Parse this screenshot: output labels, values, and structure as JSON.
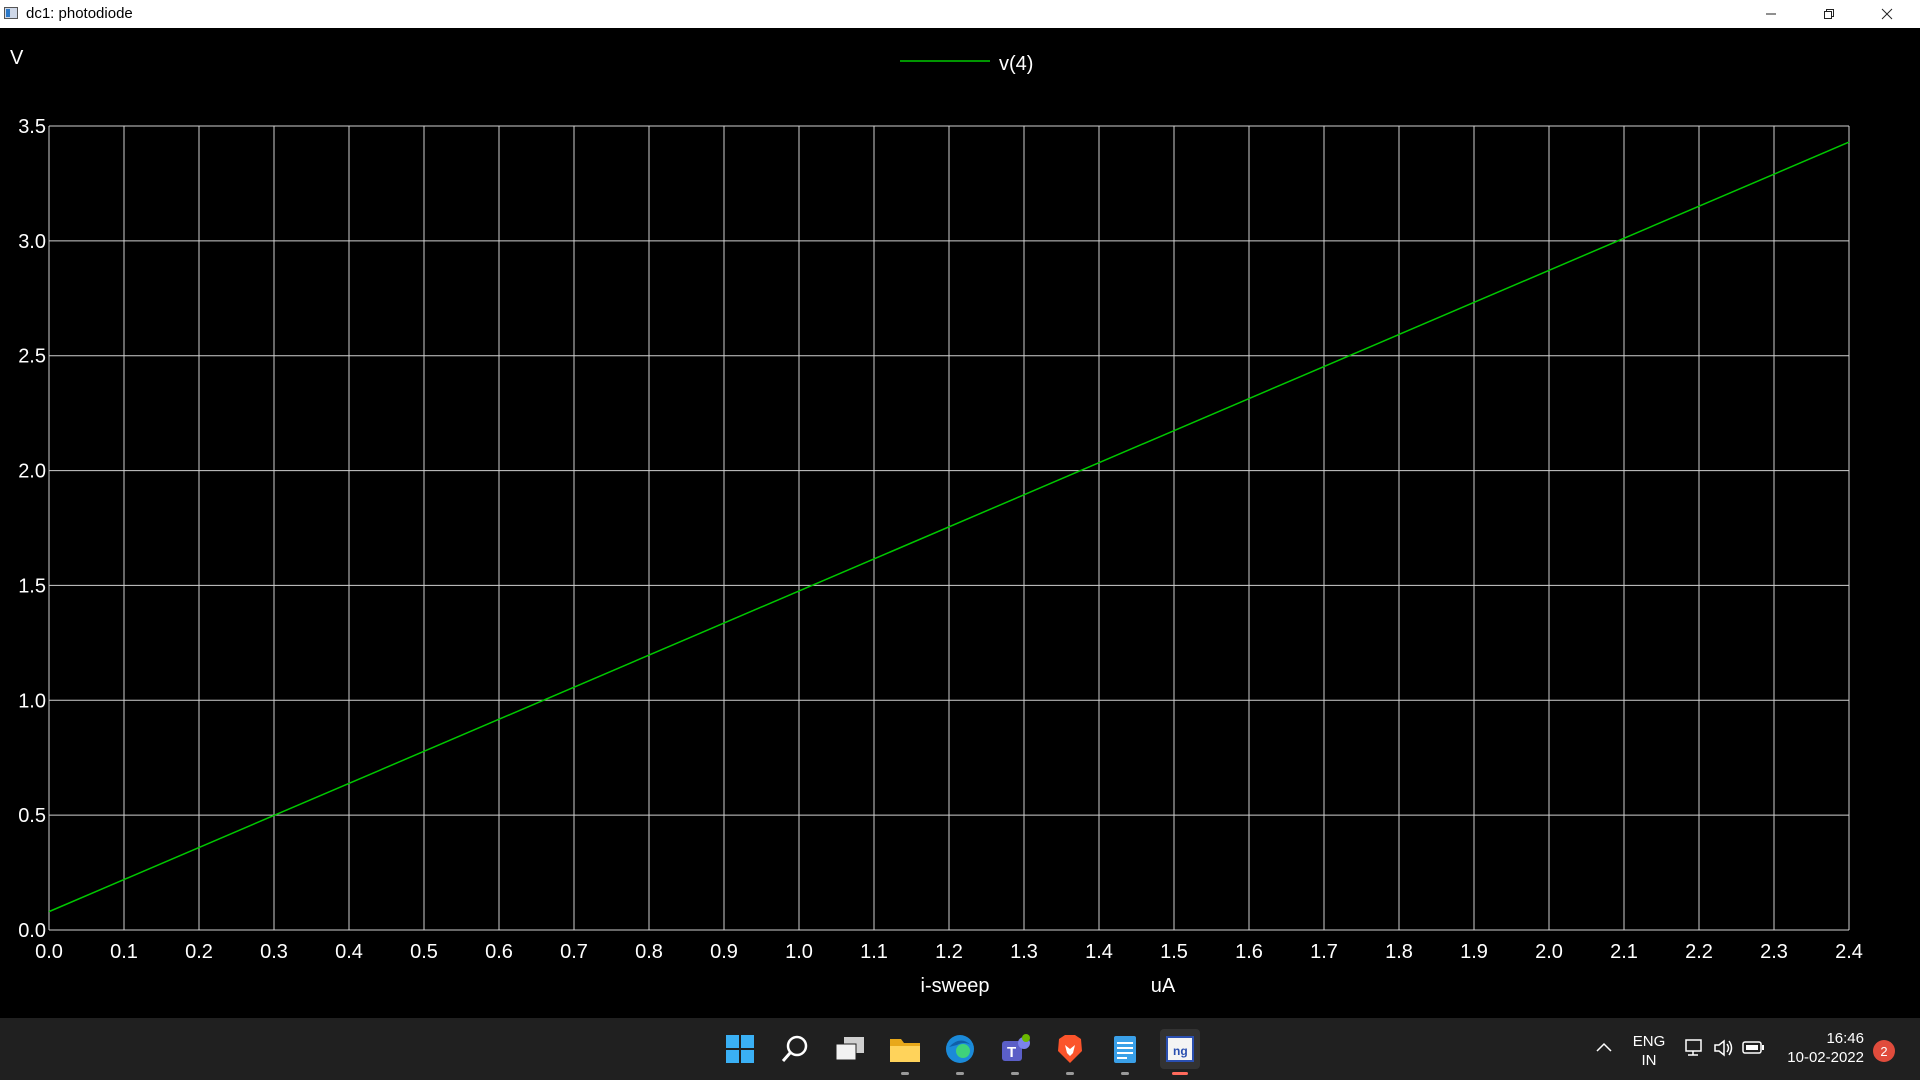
{
  "window": {
    "title": "dc1: photodiode",
    "buttons": [
      "minimize",
      "restore",
      "close"
    ]
  },
  "chart_data": {
    "type": "line",
    "title": "",
    "ylabel": "V",
    "xlabel": "i-sweep",
    "xunit": "uA",
    "xlim": [
      0.0,
      2.4
    ],
    "ylim": [
      0.0,
      3.5
    ],
    "grid": true,
    "legend_placement": "top-center",
    "x_ticks": [
      "0.0",
      "0.1",
      "0.2",
      "0.3",
      "0.4",
      "0.5",
      "0.6",
      "0.7",
      "0.8",
      "0.9",
      "1.0",
      "1.1",
      "1.2",
      "1.3",
      "1.4",
      "1.5",
      "1.6",
      "1.7",
      "1.8",
      "1.9",
      "2.0",
      "2.1",
      "2.2",
      "2.3",
      "2.4"
    ],
    "y_ticks": [
      "0.0",
      "0.5",
      "1.0",
      "1.5",
      "2.0",
      "2.5",
      "3.0",
      "3.5"
    ],
    "series": [
      {
        "name": "v(4)",
        "color": "#00c800",
        "x": [
          0.0,
          2.4
        ],
        "y": [
          0.08,
          3.43
        ]
      }
    ],
    "colors": {
      "background": "#000000",
      "grid": "#d0d0d0",
      "text": "#ffffff"
    }
  },
  "taskbar": {
    "apps": [
      "windows-start",
      "search",
      "task-view",
      "file-explorer",
      "edge",
      "teams",
      "brave",
      "notepad",
      "ngspice"
    ],
    "tray": {
      "lang_top": "ENG",
      "lang_bottom": "IN",
      "time": "16:46",
      "date": "10-02-2022",
      "notifications": "2"
    }
  }
}
